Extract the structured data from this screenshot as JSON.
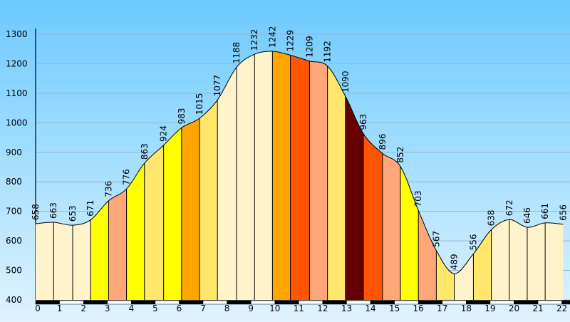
{
  "chart_data": {
    "type": "area",
    "title": "",
    "xlabel": "",
    "ylabel": "",
    "x": [
      0,
      1,
      2,
      3,
      4,
      5,
      6,
      7,
      8,
      9,
      10,
      11,
      12,
      13,
      14,
      15,
      16,
      17,
      18,
      19,
      20,
      21,
      22
    ],
    "x_tick_labels": [
      "0",
      "1",
      "2",
      "3",
      "4",
      "5",
      "6",
      "7",
      "8",
      "9",
      "10",
      "11",
      "12",
      "13",
      "14",
      "15",
      "16",
      "17",
      "18",
      "19",
      "20",
      "21",
      "22"
    ],
    "xlim": [
      0,
      22.1
    ],
    "ylim": [
      400,
      1300
    ],
    "y_ticks": [
      400,
      500,
      600,
      700,
      800,
      900,
      1000,
      1100,
      1200,
      1300
    ],
    "grid": true,
    "points": [
      {
        "x": 0.0,
        "y": 658,
        "label": "658"
      },
      {
        "x": 0.75,
        "y": 663,
        "label": "663"
      },
      {
        "x": 1.55,
        "y": 653,
        "label": "653"
      },
      {
        "x": 2.3,
        "y": 671,
        "label": "671"
      },
      {
        "x": 3.05,
        "y": 736,
        "label": "736"
      },
      {
        "x": 3.8,
        "y": 776,
        "label": "776"
      },
      {
        "x": 4.55,
        "y": 863,
        "label": "863"
      },
      {
        "x": 5.35,
        "y": 924,
        "label": "924"
      },
      {
        "x": 6.1,
        "y": 983,
        "label": "983"
      },
      {
        "x": 6.85,
        "y": 1015,
        "label": "1015"
      },
      {
        "x": 7.6,
        "y": 1077,
        "label": "1077"
      },
      {
        "x": 8.4,
        "y": 1188,
        "label": "1188"
      },
      {
        "x": 9.15,
        "y": 1232,
        "label": "1232"
      },
      {
        "x": 9.9,
        "y": 1242,
        "label": "1242"
      },
      {
        "x": 10.65,
        "y": 1229,
        "label": "1229"
      },
      {
        "x": 11.45,
        "y": 1209,
        "label": "1209"
      },
      {
        "x": 12.2,
        "y": 1192,
        "label": "1192"
      },
      {
        "x": 12.95,
        "y": 1090,
        "label": "1090"
      },
      {
        "x": 13.7,
        "y": 963,
        "label": "963"
      },
      {
        "x": 14.5,
        "y": 896,
        "label": "896"
      },
      {
        "x": 15.25,
        "y": 852,
        "label": "852"
      },
      {
        "x": 16.0,
        "y": 703,
        "label": "703"
      },
      {
        "x": 16.75,
        "y": 567,
        "label": "567"
      },
      {
        "x": 17.5,
        "y": 489,
        "label": "489"
      },
      {
        "x": 18.3,
        "y": 556,
        "label": "556"
      },
      {
        "x": 19.05,
        "y": 638,
        "label": "638"
      },
      {
        "x": 19.8,
        "y": 672,
        "label": "672"
      },
      {
        "x": 20.55,
        "y": 646,
        "label": "646"
      },
      {
        "x": 21.3,
        "y": 661,
        "label": "661"
      },
      {
        "x": 22.05,
        "y": 656,
        "label": "656"
      }
    ],
    "segment_colors": [
      "#fff3cc",
      "#fff3cc",
      "#fff3cc",
      "#ffff00",
      "#ffa77a",
      "#ffff00",
      "#ffe76b",
      "#ffff00",
      "#ffa500",
      "#ffe76b",
      "#fff3cc",
      "#fff3cc",
      "#fff3cc",
      "#ffa500",
      "#ff5500",
      "#ffa77a",
      "#ffe76b",
      "#660000",
      "#ff5500",
      "#ffa77a",
      "#ffff00",
      "#ffa77a",
      "#ffe76b",
      "#fff3cc",
      "#ffe76b",
      "#fff3cc",
      "#fff3cc",
      "#fff3cc",
      "#fff3cc"
    ],
    "background_gradient": [
      "#6ccaff",
      "#dff3ff"
    ],
    "grid_color": "#9bb4c8"
  }
}
